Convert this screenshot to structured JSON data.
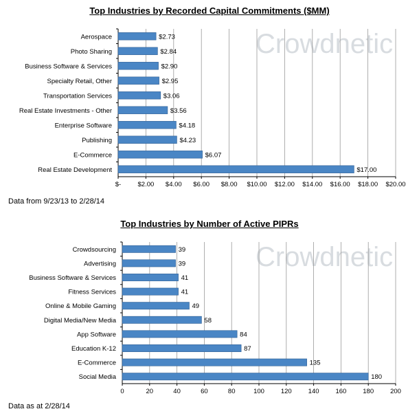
{
  "watermark": "Crowdnetic",
  "chart_data": [
    {
      "type": "bar",
      "orientation": "horizontal",
      "title": "Top Industries by Recorded Capital Commitments ($MM)",
      "categories": [
        "Aerospace",
        "Photo Sharing",
        "Business Software & Services",
        "Specialty Retail, Other",
        "Transportation Services",
        "Real Estate Investments - Other",
        "Enterprise Software",
        "Publishing",
        "E-Commerce",
        "Real Estate Development"
      ],
      "values": [
        2.73,
        2.84,
        2.9,
        2.95,
        3.06,
        3.56,
        4.18,
        4.23,
        6.07,
        17.0
      ],
      "value_labels": [
        "$2.73",
        "$2.84",
        "$2.90",
        "$2.95",
        "$3.06",
        "$3.56",
        "$4.18",
        "$4.23",
        "$6.07",
        "$17.00"
      ],
      "xticks": [
        0,
        2,
        4,
        6,
        8,
        10,
        12,
        14,
        16,
        18,
        20
      ],
      "xtick_labels": [
        "$-",
        "$2.00",
        "$4.00",
        "$6.00",
        "$8.00",
        "$10.00",
        "$12.00",
        "$14.00",
        "$16.00",
        "$18.00",
        "$20.00"
      ],
      "xlim": [
        0,
        20
      ],
      "grid": true,
      "bar_color": "#4a86c5",
      "note": "Data from 9/23/13 to 2/28/14"
    },
    {
      "type": "bar",
      "orientation": "horizontal",
      "title": "Top Industries by Number of Active PIPRs",
      "categories": [
        "Crowdsourcing",
        "Advertising",
        "Business Software & Services",
        "Fitness Services",
        "Online & Mobile Gaming",
        "Digital Media/New Media",
        "App Software",
        "Education K-12",
        "E-Commerce",
        "Social Media"
      ],
      "values": [
        39,
        39,
        41,
        41,
        49,
        58,
        84,
        87,
        135,
        180
      ],
      "value_labels": [
        "39",
        "39",
        "41",
        "41",
        "49",
        "58",
        "84",
        "87",
        "135",
        "180"
      ],
      "xticks": [
        0,
        20,
        40,
        60,
        80,
        100,
        120,
        140,
        160,
        180,
        200
      ],
      "xtick_labels": [
        "0",
        "20",
        "40",
        "60",
        "80",
        "100",
        "120",
        "140",
        "160",
        "180",
        "200"
      ],
      "xlim": [
        0,
        200
      ],
      "grid": true,
      "bar_color": "#4a86c5",
      "note": "Data as at 2/28/14"
    }
  ]
}
